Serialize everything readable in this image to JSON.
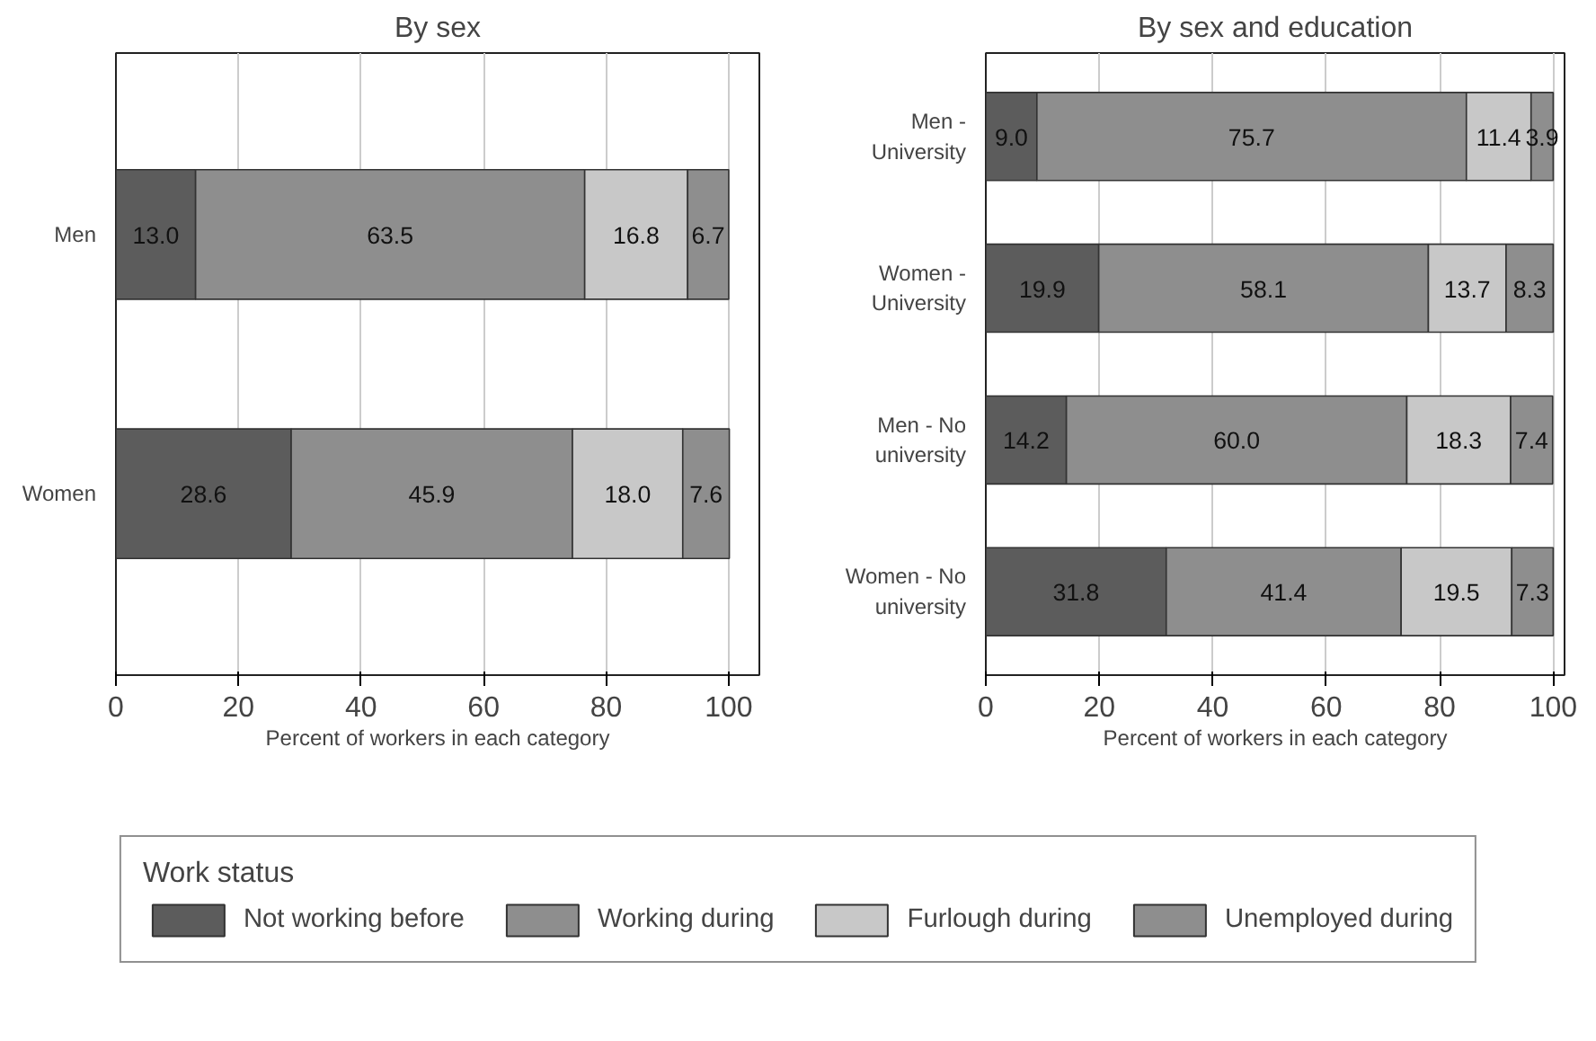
{
  "chart_data": [
    {
      "type": "bar",
      "orientation": "horizontal",
      "stacked": true,
      "title": "By sex",
      "xlabel": "Percent of workers in each category",
      "categories": [
        "Men",
        "Women"
      ],
      "xlim": [
        0,
        105
      ],
      "xticks": [
        0,
        20,
        40,
        60,
        80,
        100
      ],
      "grid": "x",
      "legend": "bottom",
      "legend_title": "Work status",
      "series": [
        {
          "name": "Not working before",
          "color": "#5c5c5c",
          "values": [
            13.0,
            28.6
          ],
          "value_labels": [
            "13.0",
            "28.6"
          ]
        },
        {
          "name": "Working during",
          "color": "#8e8e8e",
          "values": [
            63.5,
            45.9
          ],
          "value_labels": [
            "63.5",
            "45.9"
          ]
        },
        {
          "name": "Furlough during",
          "color": "#c8c8c8",
          "values": [
            16.8,
            18.0
          ],
          "value_labels": [
            "16.8",
            "18.0"
          ]
        },
        {
          "name": "Unemployed during",
          "color": "#8e8e8e",
          "values": [
            6.7,
            7.6
          ],
          "value_labels": [
            "6.7",
            "7.6"
          ]
        }
      ]
    },
    {
      "type": "bar",
      "orientation": "horizontal",
      "stacked": true,
      "title": "By sex and education",
      "xlabel": "Percent of workers in each category",
      "categories": [
        "Men -\nUniversity",
        "Women -\nUniversity",
        "Men - No\nuniversity",
        "Women - No\nuniversity"
      ],
      "xlim": [
        0,
        102
      ],
      "xticks": [
        0,
        20,
        40,
        60,
        80,
        100
      ],
      "grid": "x",
      "series": [
        {
          "color": "#5c5c5c",
          "values": [
            9.0,
            19.9,
            14.2,
            31.8
          ],
          "value_labels": [
            "9.0",
            "19.9",
            "14.2",
            "31.8"
          ]
        },
        {
          "color": "#8e8e8e",
          "values": [
            75.7,
            58.1,
            60.0,
            41.4
          ],
          "value_labels": [
            "75.7",
            "58.1",
            "60.0",
            "41.4"
          ]
        },
        {
          "color": "#c8c8c8",
          "values": [
            11.4,
            13.7,
            18.3,
            19.5
          ],
          "value_labels": [
            "11.4",
            "13.7",
            "18.3",
            "19.5"
          ]
        },
        {
          "color": "#8e8e8e",
          "values": [
            3.9,
            8.3,
            7.4,
            7.3
          ],
          "value_labels": [
            "3.9",
            "8.3",
            "7.4",
            "7.3"
          ]
        }
      ]
    }
  ]
}
